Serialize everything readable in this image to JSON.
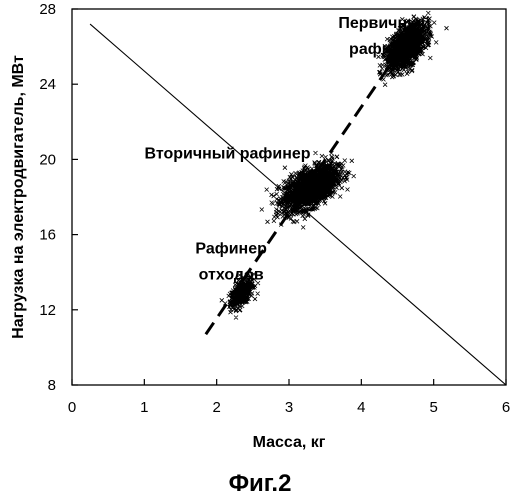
{
  "chart_data": {
    "type": "scatter",
    "xlabel": "Масса, кг",
    "ylabel": "Нагрузка на электродвигатель, МВт",
    "xlim": [
      0,
      6
    ],
    "ylim": [
      8,
      28
    ],
    "x_ticks": [
      0,
      1,
      2,
      3,
      4,
      5,
      6
    ],
    "y_ticks": [
      8,
      12,
      16,
      20,
      24,
      28
    ],
    "grid": false,
    "marker": "x",
    "clusters": [
      {
        "label": "Рафинер отходов",
        "center": [
          2.35,
          12.9
        ],
        "spread": [
          0.08,
          0.4
        ],
        "points": 400
      },
      {
        "label": "Вторичный рафинер",
        "center": [
          3.3,
          18.5
        ],
        "spread": [
          0.18,
          0.6
        ],
        "points": 2000
      },
      {
        "label": "Первичный рафинер",
        "center": [
          4.62,
          26.0
        ],
        "spread": [
          0.13,
          0.6
        ],
        "points": 1500
      }
    ],
    "annotations": [
      {
        "text": "Рафинер",
        "x": 2.2,
        "y": 15.0
      },
      {
        "text": "отходов",
        "x": 2.2,
        "y": 13.6
      },
      {
        "text": "Вторичный рафинер",
        "x": 2.15,
        "y": 20.05
      },
      {
        "text": "Первичный",
        "x": 4.32,
        "y": 27.0
      },
      {
        "text": "рафинер",
        "x": 4.32,
        "y": 25.6
      }
    ],
    "lines": [
      {
        "name": "fit",
        "style": "dashed",
        "x": [
          1.85,
          4.5
        ],
        "y": [
          10.7,
          25.6
        ]
      },
      {
        "name": "reference",
        "style": "solid",
        "x": [
          0.25,
          6.0
        ],
        "y": [
          27.2,
          8.0
        ]
      }
    ]
  },
  "caption": "Фиг.2"
}
